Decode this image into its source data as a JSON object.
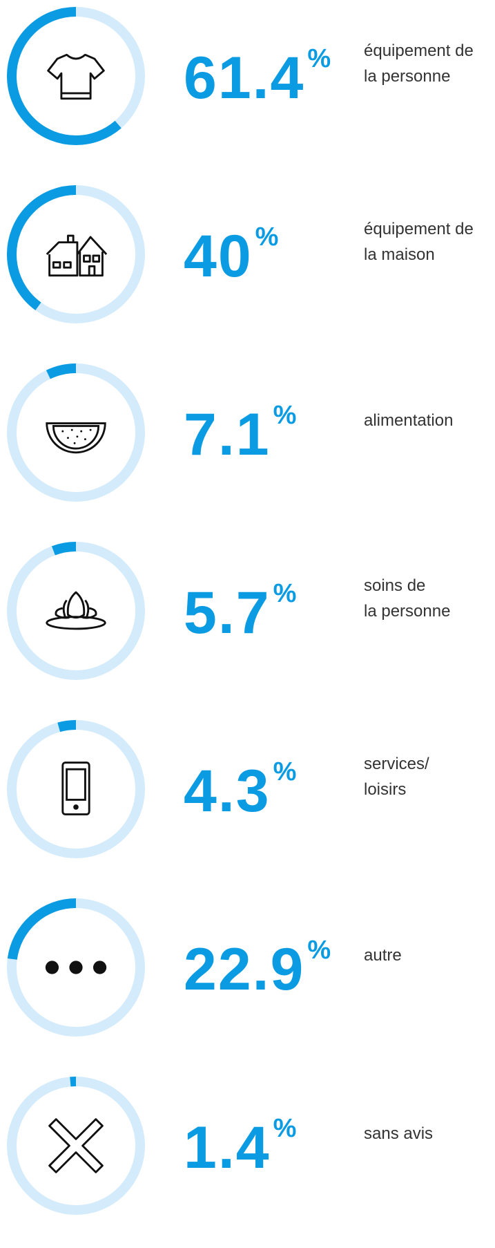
{
  "chart_data": {
    "type": "gauge",
    "categories": [
      "équipement de\nla personne",
      "équipement de\nla maison",
      "alimentation",
      "soins de\nla personne",
      "services/\nloisirs",
      "autre",
      "sans avis"
    ],
    "values": [
      61.4,
      40,
      7.1,
      5.7,
      4.3,
      22.9,
      1.4
    ],
    "unit": "%",
    "ylim": [
      0,
      100
    ],
    "color": "#0a9be3",
    "track_color": "#d4ebfb"
  }
}
